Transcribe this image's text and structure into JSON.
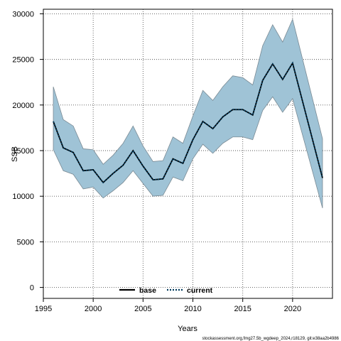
{
  "chart_data": {
    "type": "line",
    "title": "",
    "xlabel": "Years",
    "ylabel": "SSB",
    "xlim": [
      1995,
      2024
    ],
    "ylim": [
      -1200,
      30500
    ],
    "xticks": [
      1995,
      2000,
      2005,
      2010,
      2015,
      2020
    ],
    "yticks": [
      0,
      5000,
      10000,
      15000,
      20000,
      25000,
      30000
    ],
    "grid": true,
    "legend_position": "bottom-center",
    "x": [
      1996,
      1997,
      1998,
      1999,
      2000,
      2001,
      2002,
      2003,
      2004,
      2005,
      2006,
      2007,
      2008,
      2009,
      2010,
      2011,
      2012,
      2013,
      2014,
      2015,
      2016,
      2017,
      2018,
      2019,
      2020,
      2023
    ],
    "band": {
      "upper": [
        22000,
        18400,
        17700,
        15200,
        15100,
        13500,
        14500,
        15800,
        17700,
        15500,
        13800,
        13900,
        16500,
        15800,
        18800,
        21600,
        20500,
        22000,
        23200,
        23000,
        22200,
        26500,
        28800,
        26900,
        29400,
        16300
      ],
      "lower": [
        15100,
        12800,
        12400,
        10800,
        11000,
        9800,
        10600,
        11500,
        12800,
        11400,
        10000,
        10100,
        12100,
        11700,
        14100,
        15700,
        14700,
        15800,
        16500,
        16500,
        16200,
        19400,
        20900,
        19200,
        20700,
        8700
      ]
    },
    "series": [
      {
        "name": "base",
        "values": [
          18200,
          15300,
          14800,
          12800,
          12900,
          11500,
          12500,
          13400,
          15000,
          13300,
          11800,
          11900,
          14100,
          13600,
          16200,
          18200,
          17400,
          18700,
          19500,
          19500,
          18900,
          22700,
          24500,
          22800,
          24600,
          12000
        ]
      },
      {
        "name": "current",
        "values": [
          18200,
          15300,
          14800,
          12800,
          12900,
          11500,
          12500,
          13400,
          15000,
          13300,
          11800,
          11900,
          14100,
          13600,
          16200,
          18200,
          17400,
          18700,
          19500,
          19500,
          18900,
          22700,
          24500,
          22800,
          24600,
          12000
        ]
      }
    ]
  },
  "colors": {
    "band_fill": "#9fc3d6",
    "band_edge": "#7a8a94",
    "base_line": "#000000",
    "current_line": "#003a5c",
    "grid": "#555555"
  },
  "caption": "stockassessment.org,fmg27.5b_wgdeep_2024,r18129, git:e38aa2b4986"
}
